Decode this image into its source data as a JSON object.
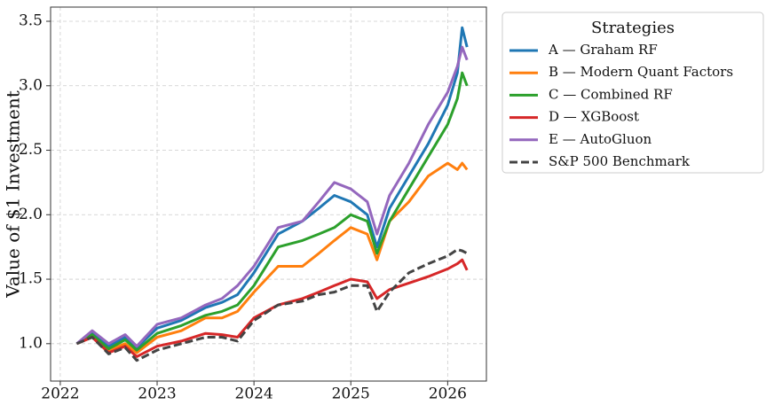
{
  "chart_data": {
    "type": "line",
    "ylabel": "Value of $1 Investment",
    "legend_title": "Strategies",
    "legend_position": "outside-upper-right",
    "grid": true,
    "x": [
      2022.17,
      2022.33,
      2022.5,
      2022.67,
      2022.79,
      2023.0,
      2023.25,
      2023.5,
      2023.67,
      2023.83,
      2024.0,
      2024.25,
      2024.5,
      2024.67,
      2024.83,
      2025.0,
      2025.17,
      2025.27,
      2025.4,
      2025.6,
      2025.8,
      2026.0,
      2026.1,
      2026.15,
      2026.2
    ],
    "xlim": [
      2021.9,
      2026.4
    ],
    "xticks": [
      2022,
      2023,
      2024,
      2025,
      2026
    ],
    "ylim": [
      0.71,
      3.61
    ],
    "yticks": [
      {
        "value": 1,
        "label": "1.0"
      },
      1.5,
      {
        "value": 2,
        "label": "2.0"
      },
      2.5,
      {
        "value": 3,
        "label": "3.0"
      },
      3.5
    ],
    "series": [
      {
        "name": "A — Graham RF",
        "color": "#1f77b4",
        "dashed": false,
        "values": [
          1.0,
          1.08,
          0.98,
          1.05,
          0.97,
          1.12,
          1.18,
          1.28,
          1.32,
          1.38,
          1.55,
          1.85,
          1.95,
          2.05,
          2.15,
          2.1,
          2.0,
          1.75,
          2.05,
          2.3,
          2.55,
          2.85,
          3.1,
          3.45,
          3.3
        ]
      },
      {
        "name": "B — Modern Quant Factors",
        "color": "#ff7f0e",
        "dashed": false,
        "values": [
          1.0,
          1.05,
          0.95,
          1.0,
          0.93,
          1.05,
          1.1,
          1.2,
          1.2,
          1.25,
          1.4,
          1.6,
          1.6,
          1.7,
          1.8,
          1.9,
          1.85,
          1.65,
          1.95,
          2.1,
          2.3,
          2.4,
          2.35,
          2.4,
          2.35
        ]
      },
      {
        "name": "C — Combined RF",
        "color": "#2ca02c",
        "dashed": false,
        "values": [
          1.0,
          1.07,
          0.96,
          1.03,
          0.95,
          1.08,
          1.14,
          1.22,
          1.25,
          1.3,
          1.45,
          1.75,
          1.8,
          1.85,
          1.9,
          2.0,
          1.95,
          1.7,
          1.95,
          2.2,
          2.45,
          2.7,
          2.9,
          3.1,
          3.0
        ]
      },
      {
        "name": "D — XGBoost",
        "color": "#d62728",
        "dashed": false,
        "values": [
          1.0,
          1.05,
          0.93,
          0.98,
          0.9,
          0.98,
          1.02,
          1.08,
          1.07,
          1.05,
          1.2,
          1.3,
          1.35,
          1.4,
          1.45,
          1.5,
          1.48,
          1.35,
          1.42,
          1.47,
          1.52,
          1.58,
          1.62,
          1.65,
          1.57
        ]
      },
      {
        "name": "E — AutoGluon",
        "color": "#9467bd",
        "dashed": false,
        "values": [
          1.0,
          1.1,
          1.0,
          1.07,
          0.98,
          1.15,
          1.2,
          1.3,
          1.35,
          1.45,
          1.6,
          1.9,
          1.95,
          2.1,
          2.25,
          2.2,
          2.1,
          1.85,
          2.15,
          2.4,
          2.7,
          2.95,
          3.15,
          3.3,
          3.2
        ]
      },
      {
        "name": "S&P 500 Benchmark",
        "color": "#444444",
        "dashed": true,
        "values": [
          1.0,
          1.05,
          0.92,
          0.97,
          0.87,
          0.95,
          1.0,
          1.05,
          1.05,
          1.02,
          1.18,
          1.3,
          1.33,
          1.38,
          1.4,
          1.45,
          1.45,
          1.25,
          1.4,
          1.55,
          1.62,
          1.68,
          1.73,
          1.72,
          1.7
        ]
      }
    ]
  }
}
